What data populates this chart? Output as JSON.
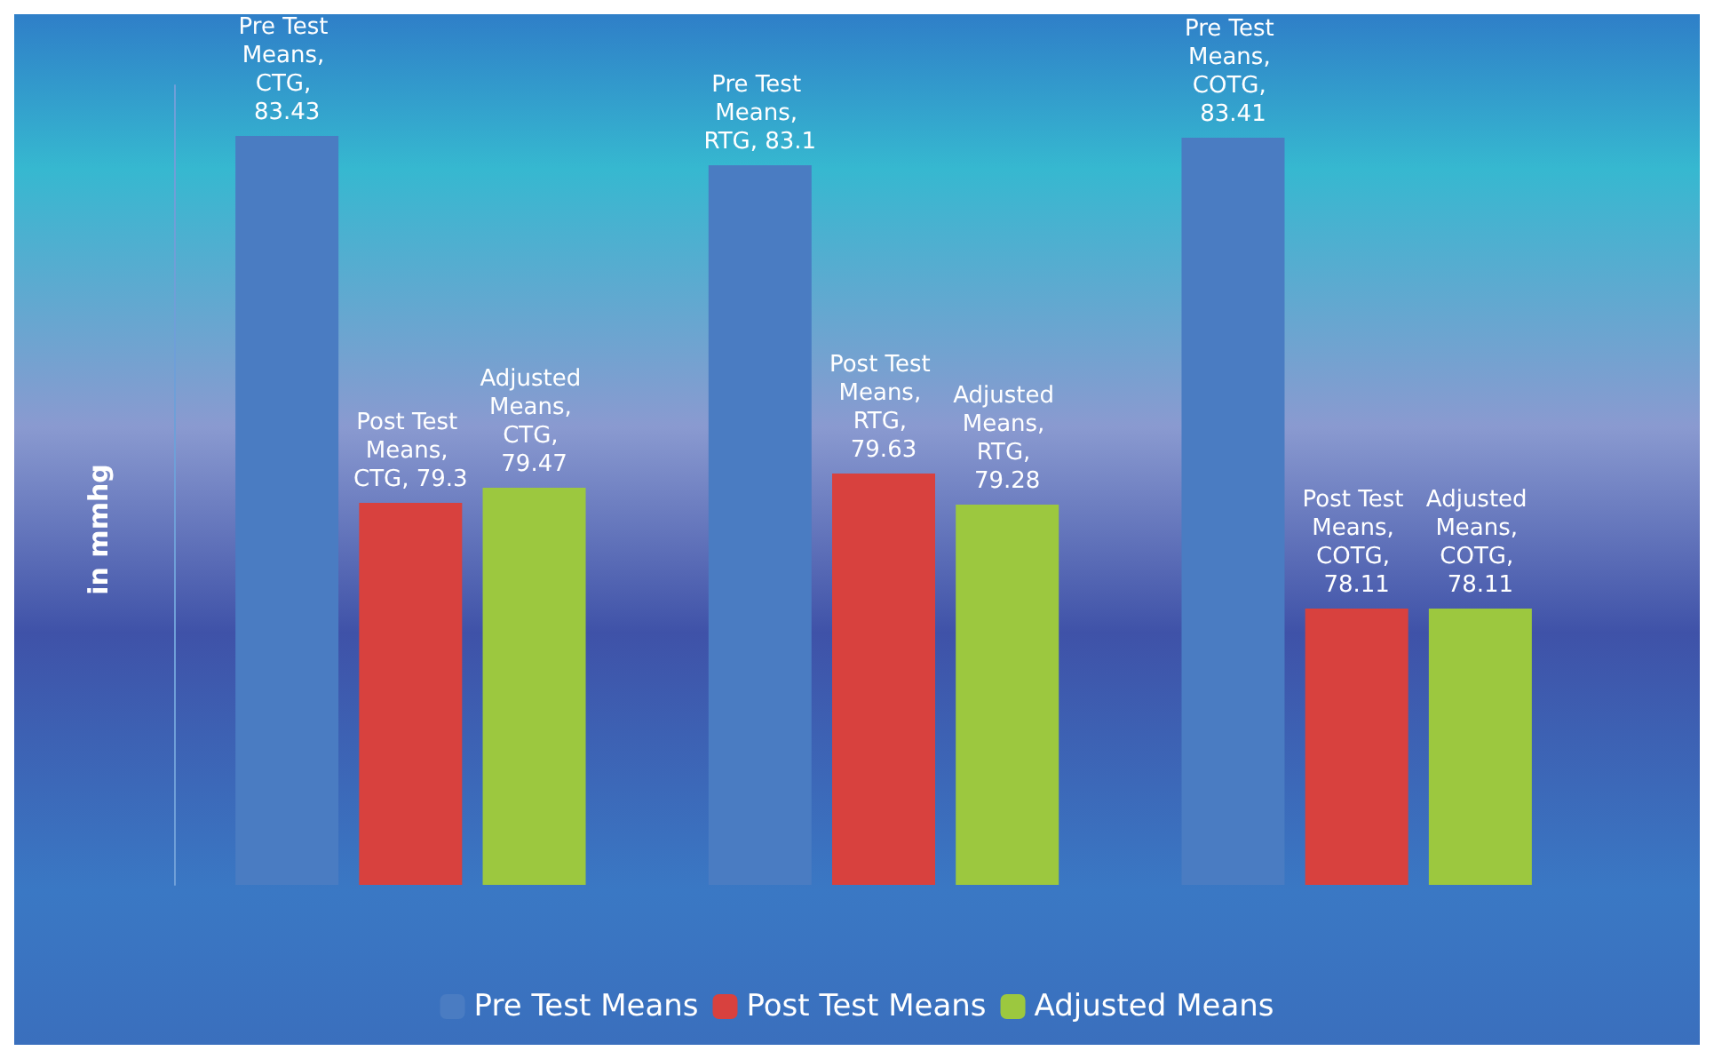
{
  "chart_data": {
    "type": "bar",
    "ylabel": "in mmhg",
    "categories": [
      null,
      null,
      null
    ],
    "series": [
      {
        "name": "Pre Test Means",
        "color": "#4a7cc2",
        "values": [
          83.43,
          83.1,
          83.41
        ],
        "value_labels": [
          "Pre Test Means, CTG, 83.43",
          "Pre Test Means, RTG, 83.1",
          "Pre Test Means, COTG, 83.41"
        ]
      },
      {
        "name": "Post Test Means",
        "color": "#d8413e",
        "values": [
          79.3,
          79.63,
          78.11
        ],
        "value_labels": [
          "Post Test Means, CTG, 79.3",
          "Post Test Means, RTG, 79.63",
          "Post Test Means, COTG, 78.11"
        ]
      },
      {
        "name": "Adjusted Means",
        "color": "#9cc83f",
        "values": [
          79.47,
          79.28,
          78.11
        ],
        "value_labels": [
          "Adjusted Means, CTG, 79.47",
          "Adjusted Means, RTG, 79.28",
          "Adjusted Means, COTG, 78.11"
        ]
      }
    ],
    "ylim": [
      75,
      84
    ],
    "tick_labels": false,
    "legend": "bottom"
  }
}
